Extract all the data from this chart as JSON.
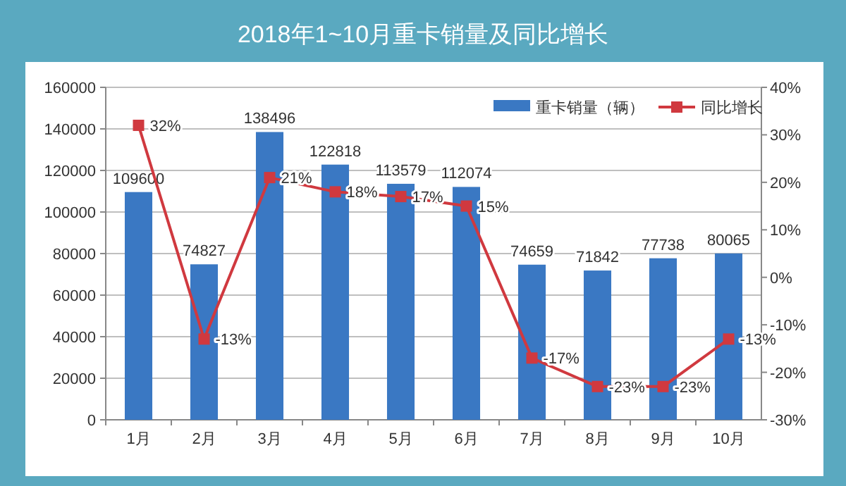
{
  "chart_data": {
    "type": "bar",
    "title": "2018年1~10月重卡销量及同比增长",
    "categories": [
      "1月",
      "2月",
      "3月",
      "4月",
      "5月",
      "6月",
      "7月",
      "8月",
      "9月",
      "10月"
    ],
    "series": [
      {
        "name": "重卡销量（辆）",
        "color": "#3a78c3",
        "values": [
          109600,
          74827,
          138496,
          122818,
          113579,
          112074,
          74659,
          71842,
          77738,
          80065
        ],
        "value_labels": [
          "109600",
          "74827",
          "138496",
          "122818",
          "113579",
          "112074",
          "74659",
          "71842",
          "77738",
          "80065"
        ]
      },
      {
        "name": "同比增长",
        "type": "line",
        "axis": "y2",
        "color": "#d0393f",
        "marker": "square",
        "values": [
          32,
          -13,
          21,
          18,
          17,
          15,
          -17,
          -23,
          -23,
          -13
        ],
        "value_labels": [
          "32%",
          "-13%",
          "21%",
          "18%",
          "17%",
          "15%",
          "-17%",
          "-23%",
          "-23%",
          "-13%"
        ]
      }
    ],
    "ylim": [
      0,
      160000
    ],
    "yticks": [
      0,
      20000,
      40000,
      60000,
      80000,
      100000,
      120000,
      140000,
      160000
    ],
    "y2lim": [
      -30,
      40
    ],
    "y2ticks": [
      {
        "value": -30,
        "label": "-30%"
      },
      {
        "value": -20,
        "label": "-20%"
      },
      {
        "value": -10,
        "label": "-10%"
      },
      {
        "value": 0,
        "label": "0%"
      },
      {
        "value": 10,
        "label": "10%"
      },
      {
        "value": 20,
        "label": "20%"
      },
      {
        "value": 30,
        "label": "30%"
      },
      {
        "value": 40,
        "label": "40%"
      }
    ],
    "grid": "y",
    "legend": "top right"
  }
}
